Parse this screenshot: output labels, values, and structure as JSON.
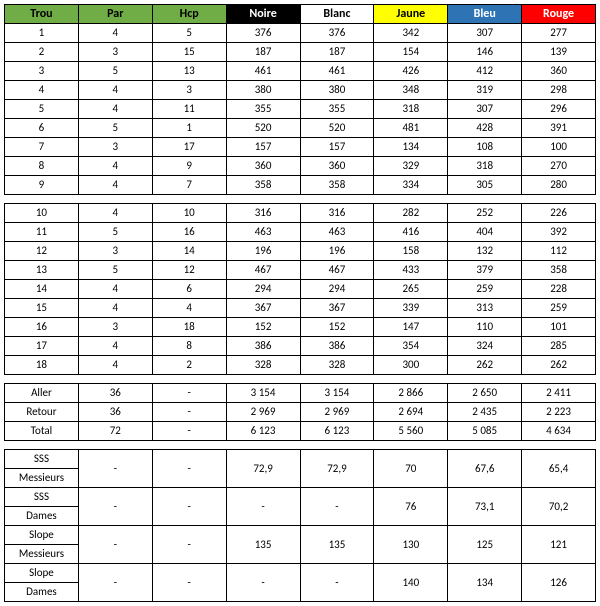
{
  "colors": {
    "trou": "#70ad47",
    "par": "#70ad47",
    "hcp": "#70ad47",
    "noire": "#000000",
    "blanc": "#ffffff",
    "jaune": "#ffff00",
    "bleu": "#2e74b5",
    "rouge": "#ff0000",
    "border": "#000000"
  },
  "headers": {
    "trou": "Trou",
    "par": "Par",
    "hcp": "Hcp",
    "noire": "Noire",
    "blanc": "Blanc",
    "jaune": "Jaune",
    "bleu": "Bleu",
    "rouge": "Rouge"
  },
  "front9": [
    {
      "trou": "1",
      "par": "4",
      "hcp": "5",
      "noire": "376",
      "blanc": "376",
      "jaune": "342",
      "bleu": "307",
      "rouge": "277"
    },
    {
      "trou": "2",
      "par": "3",
      "hcp": "15",
      "noire": "187",
      "blanc": "187",
      "jaune": "154",
      "bleu": "146",
      "rouge": "139"
    },
    {
      "trou": "3",
      "par": "5",
      "hcp": "13",
      "noire": "461",
      "blanc": "461",
      "jaune": "426",
      "bleu": "412",
      "rouge": "360"
    },
    {
      "trou": "4",
      "par": "4",
      "hcp": "3",
      "noire": "380",
      "blanc": "380",
      "jaune": "348",
      "bleu": "319",
      "rouge": "298"
    },
    {
      "trou": "5",
      "par": "4",
      "hcp": "11",
      "noire": "355",
      "blanc": "355",
      "jaune": "318",
      "bleu": "307",
      "rouge": "296"
    },
    {
      "trou": "6",
      "par": "5",
      "hcp": "1",
      "noire": "520",
      "blanc": "520",
      "jaune": "481",
      "bleu": "428",
      "rouge": "391"
    },
    {
      "trou": "7",
      "par": "3",
      "hcp": "17",
      "noire": "157",
      "blanc": "157",
      "jaune": "134",
      "bleu": "108",
      "rouge": "100"
    },
    {
      "trou": "8",
      "par": "4",
      "hcp": "9",
      "noire": "360",
      "blanc": "360",
      "jaune": "329",
      "bleu": "318",
      "rouge": "270"
    },
    {
      "trou": "9",
      "par": "4",
      "hcp": "7",
      "noire": "358",
      "blanc": "358",
      "jaune": "334",
      "bleu": "305",
      "rouge": "280"
    }
  ],
  "back9": [
    {
      "trou": "10",
      "par": "4",
      "hcp": "10",
      "noire": "316",
      "blanc": "316",
      "jaune": "282",
      "bleu": "252",
      "rouge": "226"
    },
    {
      "trou": "11",
      "par": "5",
      "hcp": "16",
      "noire": "463",
      "blanc": "463",
      "jaune": "416",
      "bleu": "404",
      "rouge": "392"
    },
    {
      "trou": "12",
      "par": "3",
      "hcp": "14",
      "noire": "196",
      "blanc": "196",
      "jaune": "158",
      "bleu": "132",
      "rouge": "112"
    },
    {
      "trou": "13",
      "par": "5",
      "hcp": "12",
      "noire": "467",
      "blanc": "467",
      "jaune": "433",
      "bleu": "379",
      "rouge": "358"
    },
    {
      "trou": "14",
      "par": "4",
      "hcp": "6",
      "noire": "294",
      "blanc": "294",
      "jaune": "265",
      "bleu": "259",
      "rouge": "228"
    },
    {
      "trou": "15",
      "par": "4",
      "hcp": "4",
      "noire": "367",
      "blanc": "367",
      "jaune": "339",
      "bleu": "313",
      "rouge": "259"
    },
    {
      "trou": "16",
      "par": "3",
      "hcp": "18",
      "noire": "152",
      "blanc": "152",
      "jaune": "147",
      "bleu": "110",
      "rouge": "101"
    },
    {
      "trou": "17",
      "par": "4",
      "hcp": "8",
      "noire": "386",
      "blanc": "386",
      "jaune": "354",
      "bleu": "324",
      "rouge": "285"
    },
    {
      "trou": "18",
      "par": "4",
      "hcp": "2",
      "noire": "328",
      "blanc": "328",
      "jaune": "300",
      "bleu": "262",
      "rouge": "262"
    }
  ],
  "totals": [
    {
      "label": "Aller",
      "par": "36",
      "hcp": "-",
      "noire": "3 154",
      "blanc": "3 154",
      "jaune": "2 866",
      "bleu": "2 650",
      "rouge": "2 411"
    },
    {
      "label": "Retour",
      "par": "36",
      "hcp": "-",
      "noire": "2 969",
      "blanc": "2 969",
      "jaune": "2 694",
      "bleu": "2 435",
      "rouge": "2 223"
    },
    {
      "label": "Total",
      "par": "72",
      "hcp": "-",
      "noire": "6 123",
      "blanc": "6 123",
      "jaune": "5 560",
      "bleu": "5 085",
      "rouge": "4 634"
    }
  ],
  "ratings": [
    {
      "label1": "SSS",
      "label2": "Messieurs",
      "par": "-",
      "hcp": "-",
      "noire": "72,9",
      "blanc": "72,9",
      "jaune": "70",
      "bleu": "67,6",
      "rouge": "65,4"
    },
    {
      "label1": "SSS",
      "label2": "Dames",
      "par": "-",
      "hcp": "-",
      "noire": "-",
      "blanc": "-",
      "jaune": "76",
      "bleu": "73,1",
      "rouge": "70,2"
    },
    {
      "label1": "Slope",
      "label2": "Messieurs",
      "par": "-",
      "hcp": "-",
      "noire": "135",
      "blanc": "135",
      "jaune": "130",
      "bleu": "125",
      "rouge": "121"
    },
    {
      "label1": "Slope",
      "label2": "Dames",
      "par": "-",
      "hcp": "-",
      "noire": "-",
      "blanc": "-",
      "jaune": "140",
      "bleu": "134",
      "rouge": "126"
    }
  ]
}
